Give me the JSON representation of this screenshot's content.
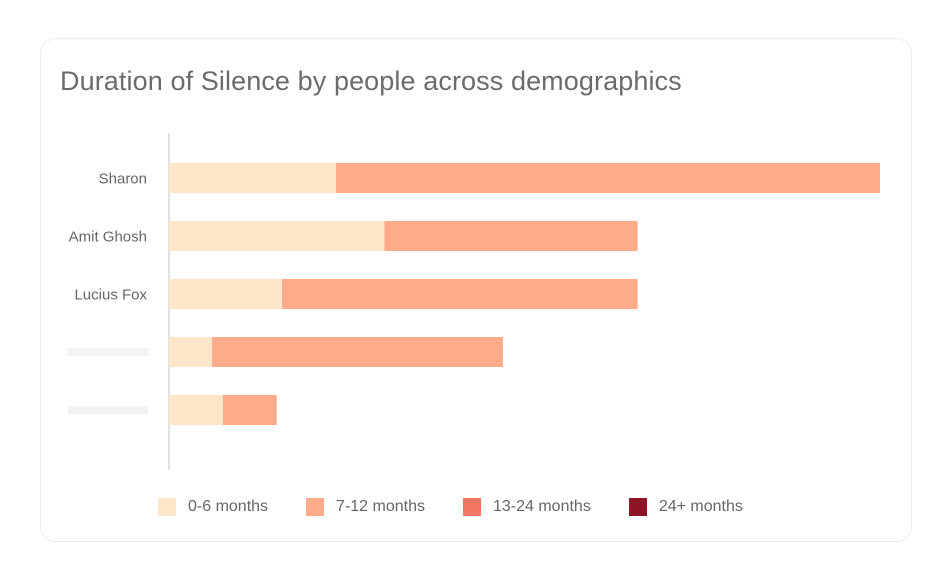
{
  "chart_data": {
    "type": "bar",
    "orientation": "horizontal",
    "stacked": true,
    "title": "Duration of Silence by people across demographics",
    "categories": [
      "Sharon",
      "Amit Ghosh",
      "Lucius Fox",
      "",
      ""
    ],
    "series": [
      {
        "name": "0-6 months",
        "color": "#fde6ca",
        "values": [
          3.1,
          4.0,
          2.1,
          0.8,
          1.0
        ]
      },
      {
        "name": "7-12 months",
        "color": "#ffab8a",
        "values": [
          10.1,
          4.7,
          6.6,
          5.4,
          1.0
        ]
      },
      {
        "name": "13-24 months",
        "color": "#f07563",
        "values": [
          0,
          0,
          0,
          0,
          0
        ]
      },
      {
        "name": "24+ months",
        "color": "#8e1526",
        "values": [
          0,
          0,
          0,
          0,
          0
        ]
      }
    ],
    "xlim": [
      0,
      13.2
    ],
    "grid": false,
    "legend_position": "bottom",
    "placeholder_label_color": "#f2f2f2",
    "axis_color": "#d9d9d9"
  }
}
